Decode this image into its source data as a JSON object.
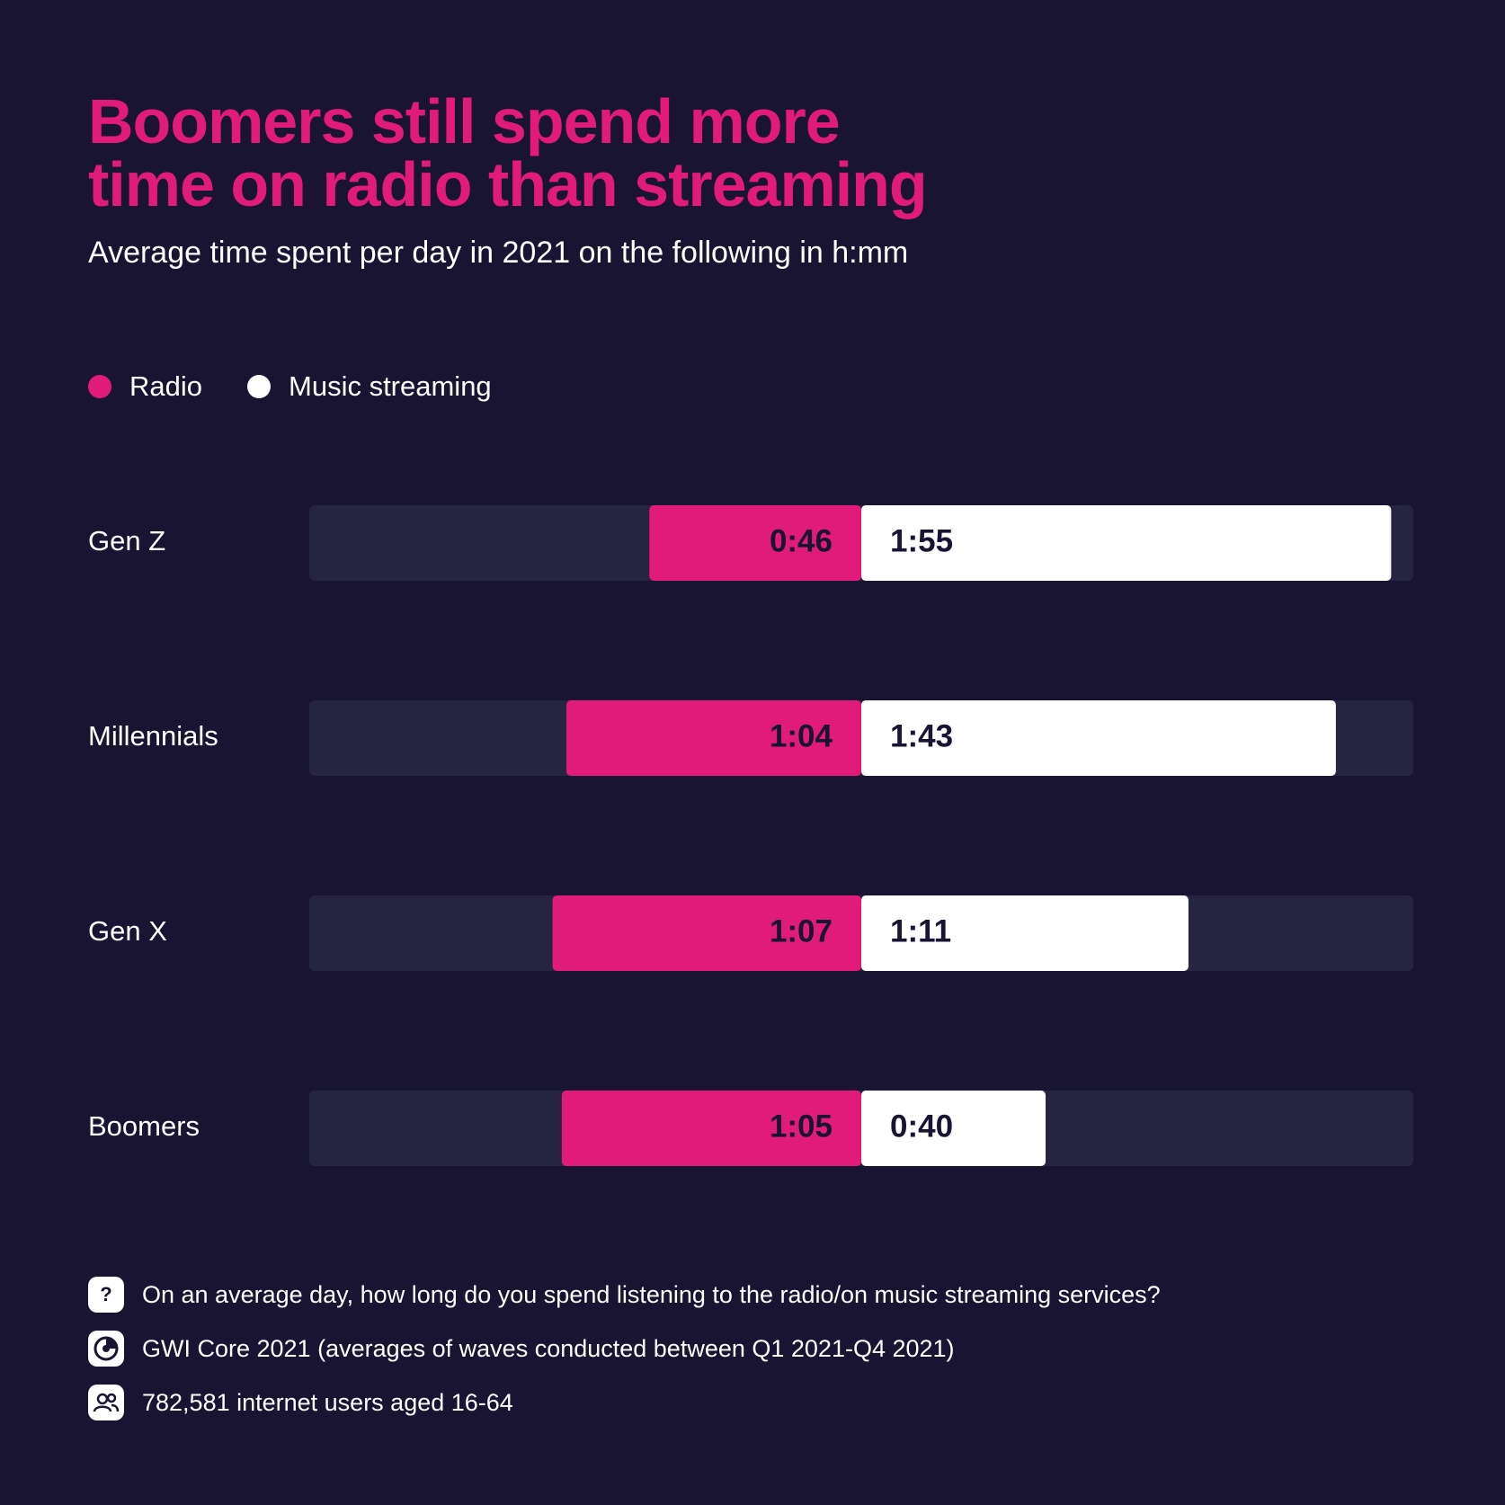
{
  "header": {
    "title_line1": "Boomers still spend more",
    "title_line2": "time on radio than streaming",
    "subtitle": "Average time spent per day in 2021 on the following in h:mm"
  },
  "colors": {
    "background": "#191432",
    "track": "#252541",
    "radio": "#e01b79",
    "streaming": "#ffffff",
    "title": "#e01b79"
  },
  "legend": [
    {
      "label": "Radio",
      "color": "#e01b79"
    },
    {
      "label": "Music streaming",
      "color": "#ffffff"
    }
  ],
  "chart_data": {
    "type": "bar",
    "orientation": "horizontal-diverging",
    "title": "Boomers still spend more time on radio than streaming",
    "subtitle": "Average time spent per day in 2021 on the following in h:mm",
    "categories": [
      "Gen Z",
      "Millennials",
      "Gen X",
      "Boomers"
    ],
    "series": [
      {
        "name": "Radio",
        "labels": [
          "0:46",
          "1:04",
          "1:07",
          "1:05"
        ],
        "minutes": [
          46,
          64,
          67,
          65
        ],
        "direction": "left"
      },
      {
        "name": "Music streaming",
        "labels": [
          "1:55",
          "1:43",
          "1:11",
          "0:40"
        ],
        "minutes": [
          115,
          103,
          71,
          40
        ],
        "direction": "right"
      }
    ],
    "legend_position": "top-left",
    "grid": false
  },
  "footer": {
    "question_icon": "question-mark-icon",
    "question": "On an average day, how long do you spend listening to the radio/on music streaming services?",
    "source_icon": "gwi-logo-icon",
    "source": "GWI Core 2021 (averages of waves conducted between Q1 2021-Q4 2021)",
    "sample_icon": "users-icon",
    "sample": "782,581 internet users aged 16-64"
  }
}
